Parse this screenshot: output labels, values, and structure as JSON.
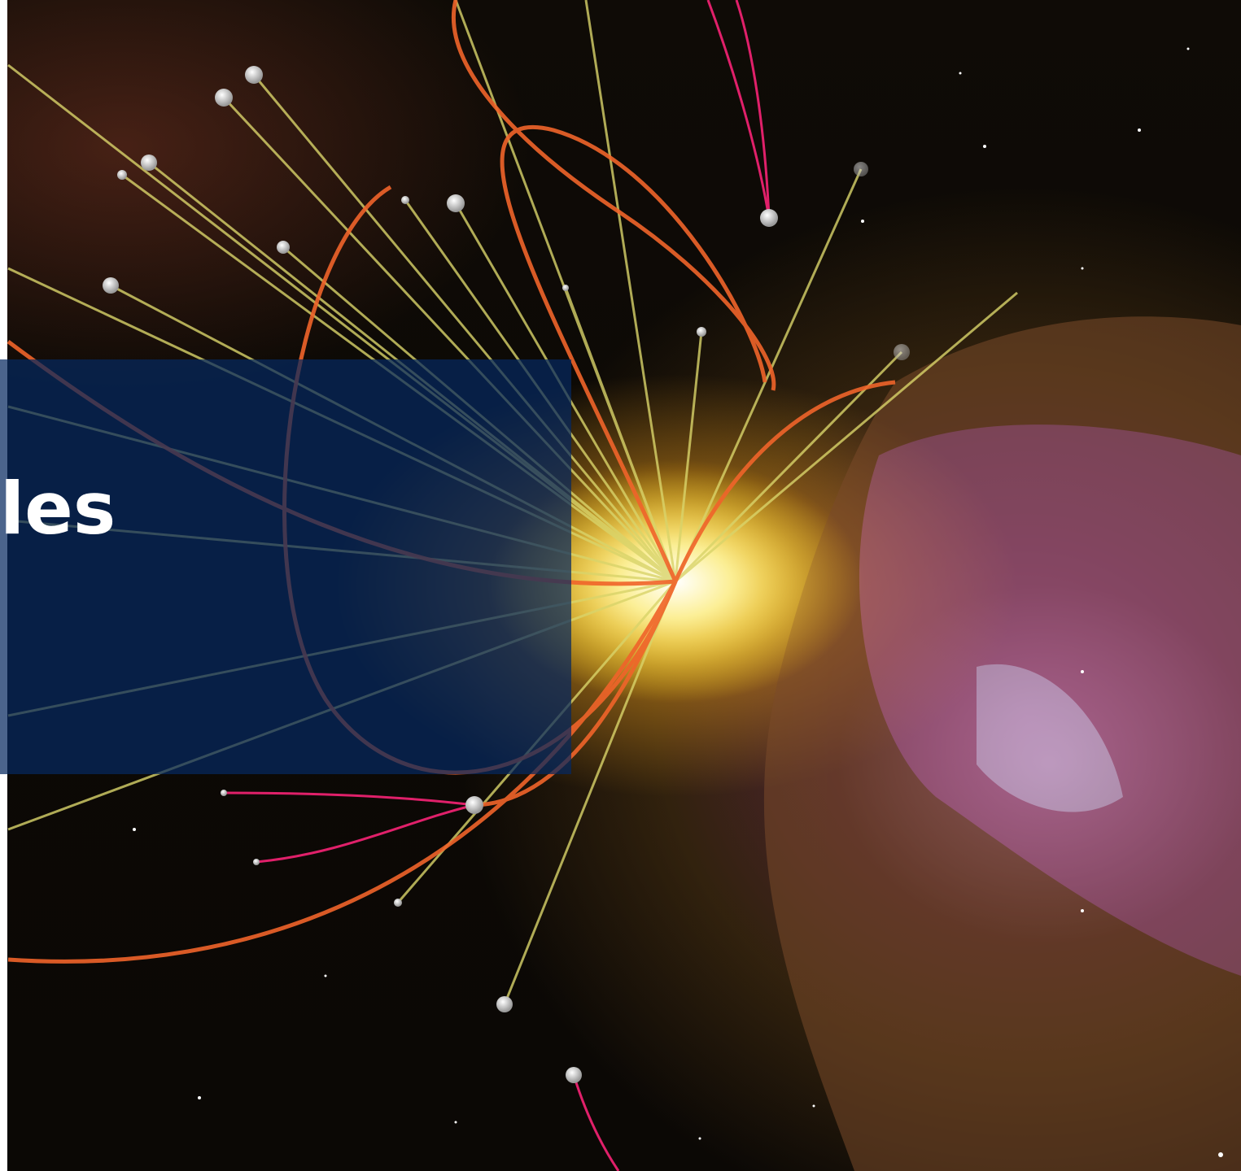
{
  "banner": {
    "title_fragment": "les",
    "color": "#05285F"
  },
  "image": {
    "subject": "particle-collision-over-nebula",
    "accent_colors": {
      "track_yellow": "#D9D46A",
      "track_orange": "#F0642A",
      "track_magenta": "#E0206A",
      "core_glow": "#FFF3A0",
      "nebula_pink": "#C46AA8"
    }
  }
}
